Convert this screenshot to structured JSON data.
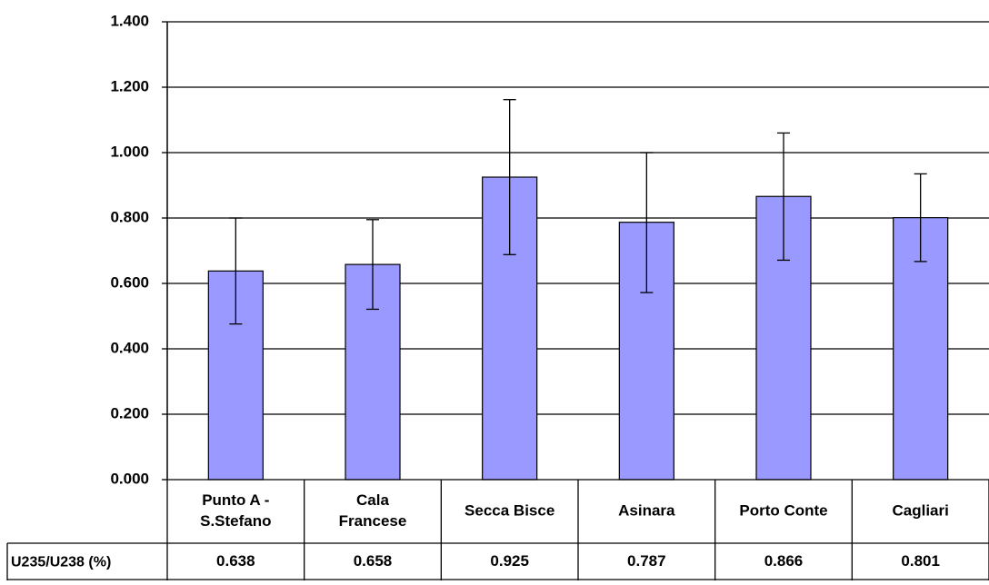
{
  "chart_data": {
    "type": "bar",
    "categories": [
      [
        "Punto A -",
        "S.Stefano"
      ],
      [
        "Cala",
        "Francese"
      ],
      [
        "Secca Bisce"
      ],
      [
        "Asinara"
      ],
      [
        "Porto Conte"
      ],
      [
        "Cagliari"
      ]
    ],
    "series": [
      {
        "name": "U235/U238 (%)",
        "values": [
          0.638,
          0.658,
          0.925,
          0.787,
          0.866,
          0.801
        ],
        "value_labels": [
          "0.638",
          "0.658",
          "0.925",
          "0.787",
          "0.866",
          "0.801"
        ],
        "error_low": [
          0.476,
          0.521,
          0.688,
          0.572,
          0.671,
          0.667
        ],
        "error_high": [
          0.8,
          0.795,
          1.162,
          1.0,
          1.06,
          0.935
        ],
        "color": "#9999FF"
      }
    ],
    "ylim": [
      0,
      1.4
    ],
    "yticks": [
      0,
      0.2,
      0.4,
      0.6,
      0.8,
      1.0,
      1.2,
      1.4
    ],
    "ytick_labels": [
      "0.000",
      "0.200",
      "0.400",
      "0.600",
      "0.800",
      "1.000",
      "1.200",
      "1.400"
    ],
    "grid": true,
    "data_table": true,
    "title": "",
    "xlabel": "",
    "ylabel": ""
  }
}
